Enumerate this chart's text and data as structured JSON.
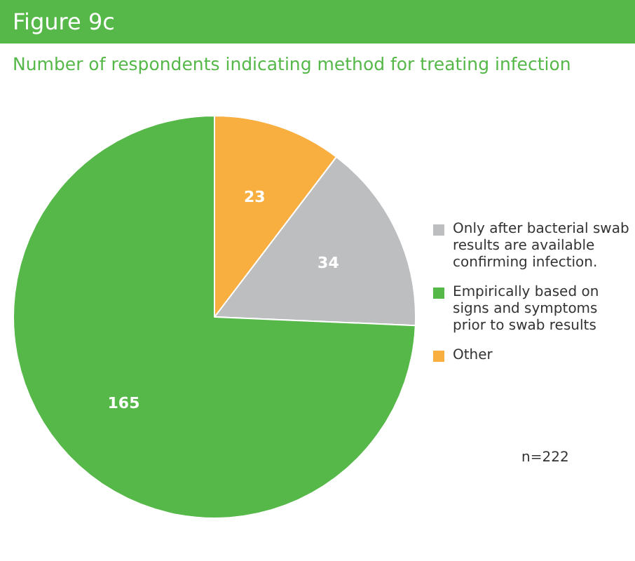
{
  "chart_data": {
    "type": "pie",
    "subtitle": "Figure 9c",
    "title": "Number of respondents indicating method for treating infection",
    "categories": [
      "Only after bacterial swab results are available confirming infection.",
      "Empirically based on signs and symptoms prior to swab results",
      "Other"
    ],
    "values": [
      34,
      165,
      23
    ],
    "colors": [
      "#bcbec0",
      "#55b848",
      "#f9ae40"
    ],
    "data_labels": true,
    "legend": "right",
    "annotations": [
      "n=222"
    ]
  }
}
